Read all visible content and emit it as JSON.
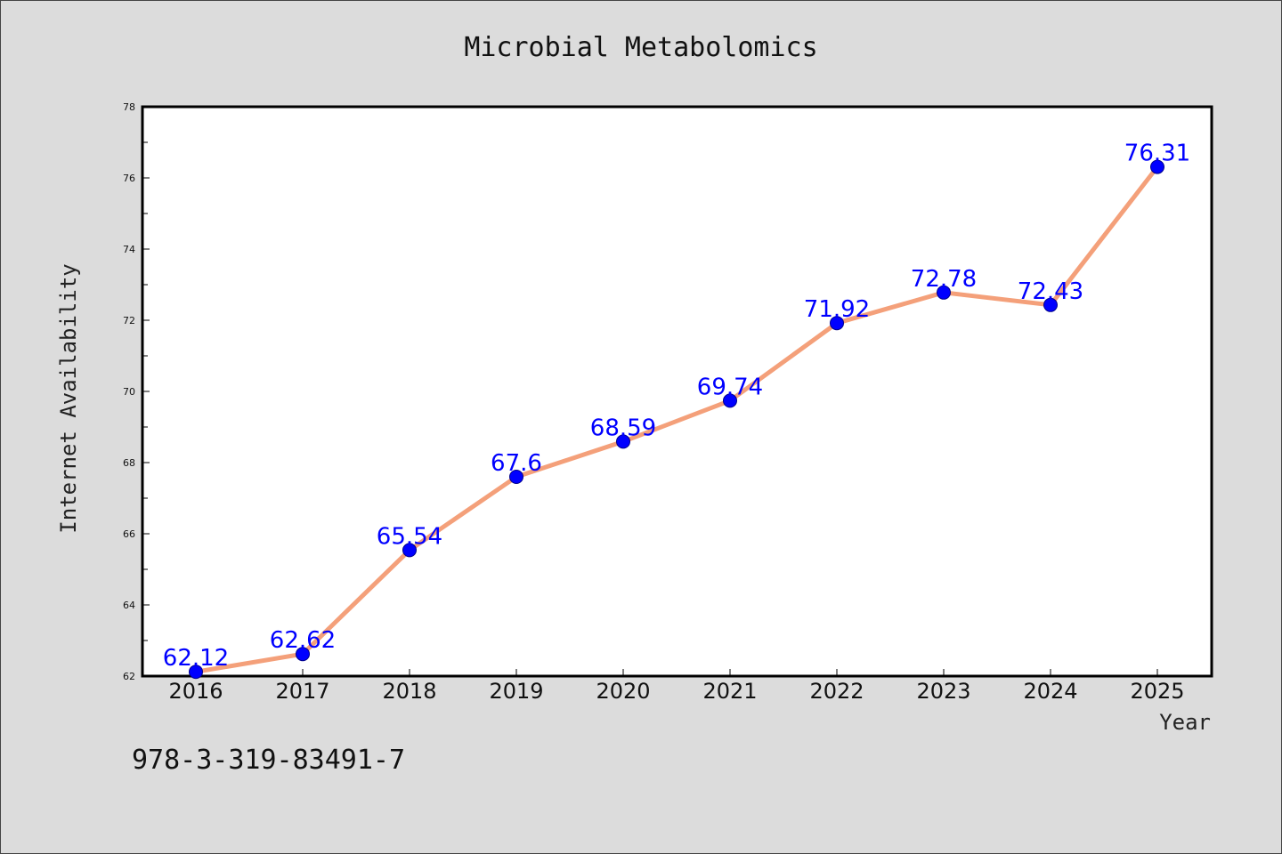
{
  "chart_data": {
    "type": "line",
    "title": "Microbial Metabolomics",
    "xlabel": "Year",
    "ylabel": "Internet Availability",
    "categories": [
      "2016",
      "2017",
      "2018",
      "2019",
      "2020",
      "2021",
      "2022",
      "2023",
      "2024",
      "2025"
    ],
    "series": [
      {
        "values": [
          62.12,
          62.62,
          65.54,
          67.6,
          68.59,
          69.74,
          71.92,
          72.78,
          72.43,
          76.31
        ],
        "labels": [
          "62.12",
          "62.62",
          "65.54",
          "67.6",
          "68.59",
          "69.74",
          "71.92",
          "72.78",
          "72.43",
          "76.31"
        ],
        "line_color": "#f4a07a",
        "marker_color": "#0000ff"
      }
    ],
    "ylim": [
      62,
      78
    ],
    "yticks": [
      "62",
      "64",
      "66",
      "68",
      "70",
      "72",
      "74",
      "76",
      "78"
    ],
    "grid": false,
    "legend": "none"
  },
  "footer_text": "978-3-319-83491-7",
  "colors": {
    "background": "#dcdcdc",
    "plot_area": "#ffffff",
    "line": "#f4a07a",
    "markers": "#0000ff",
    "data_labels": "#0000ff"
  }
}
